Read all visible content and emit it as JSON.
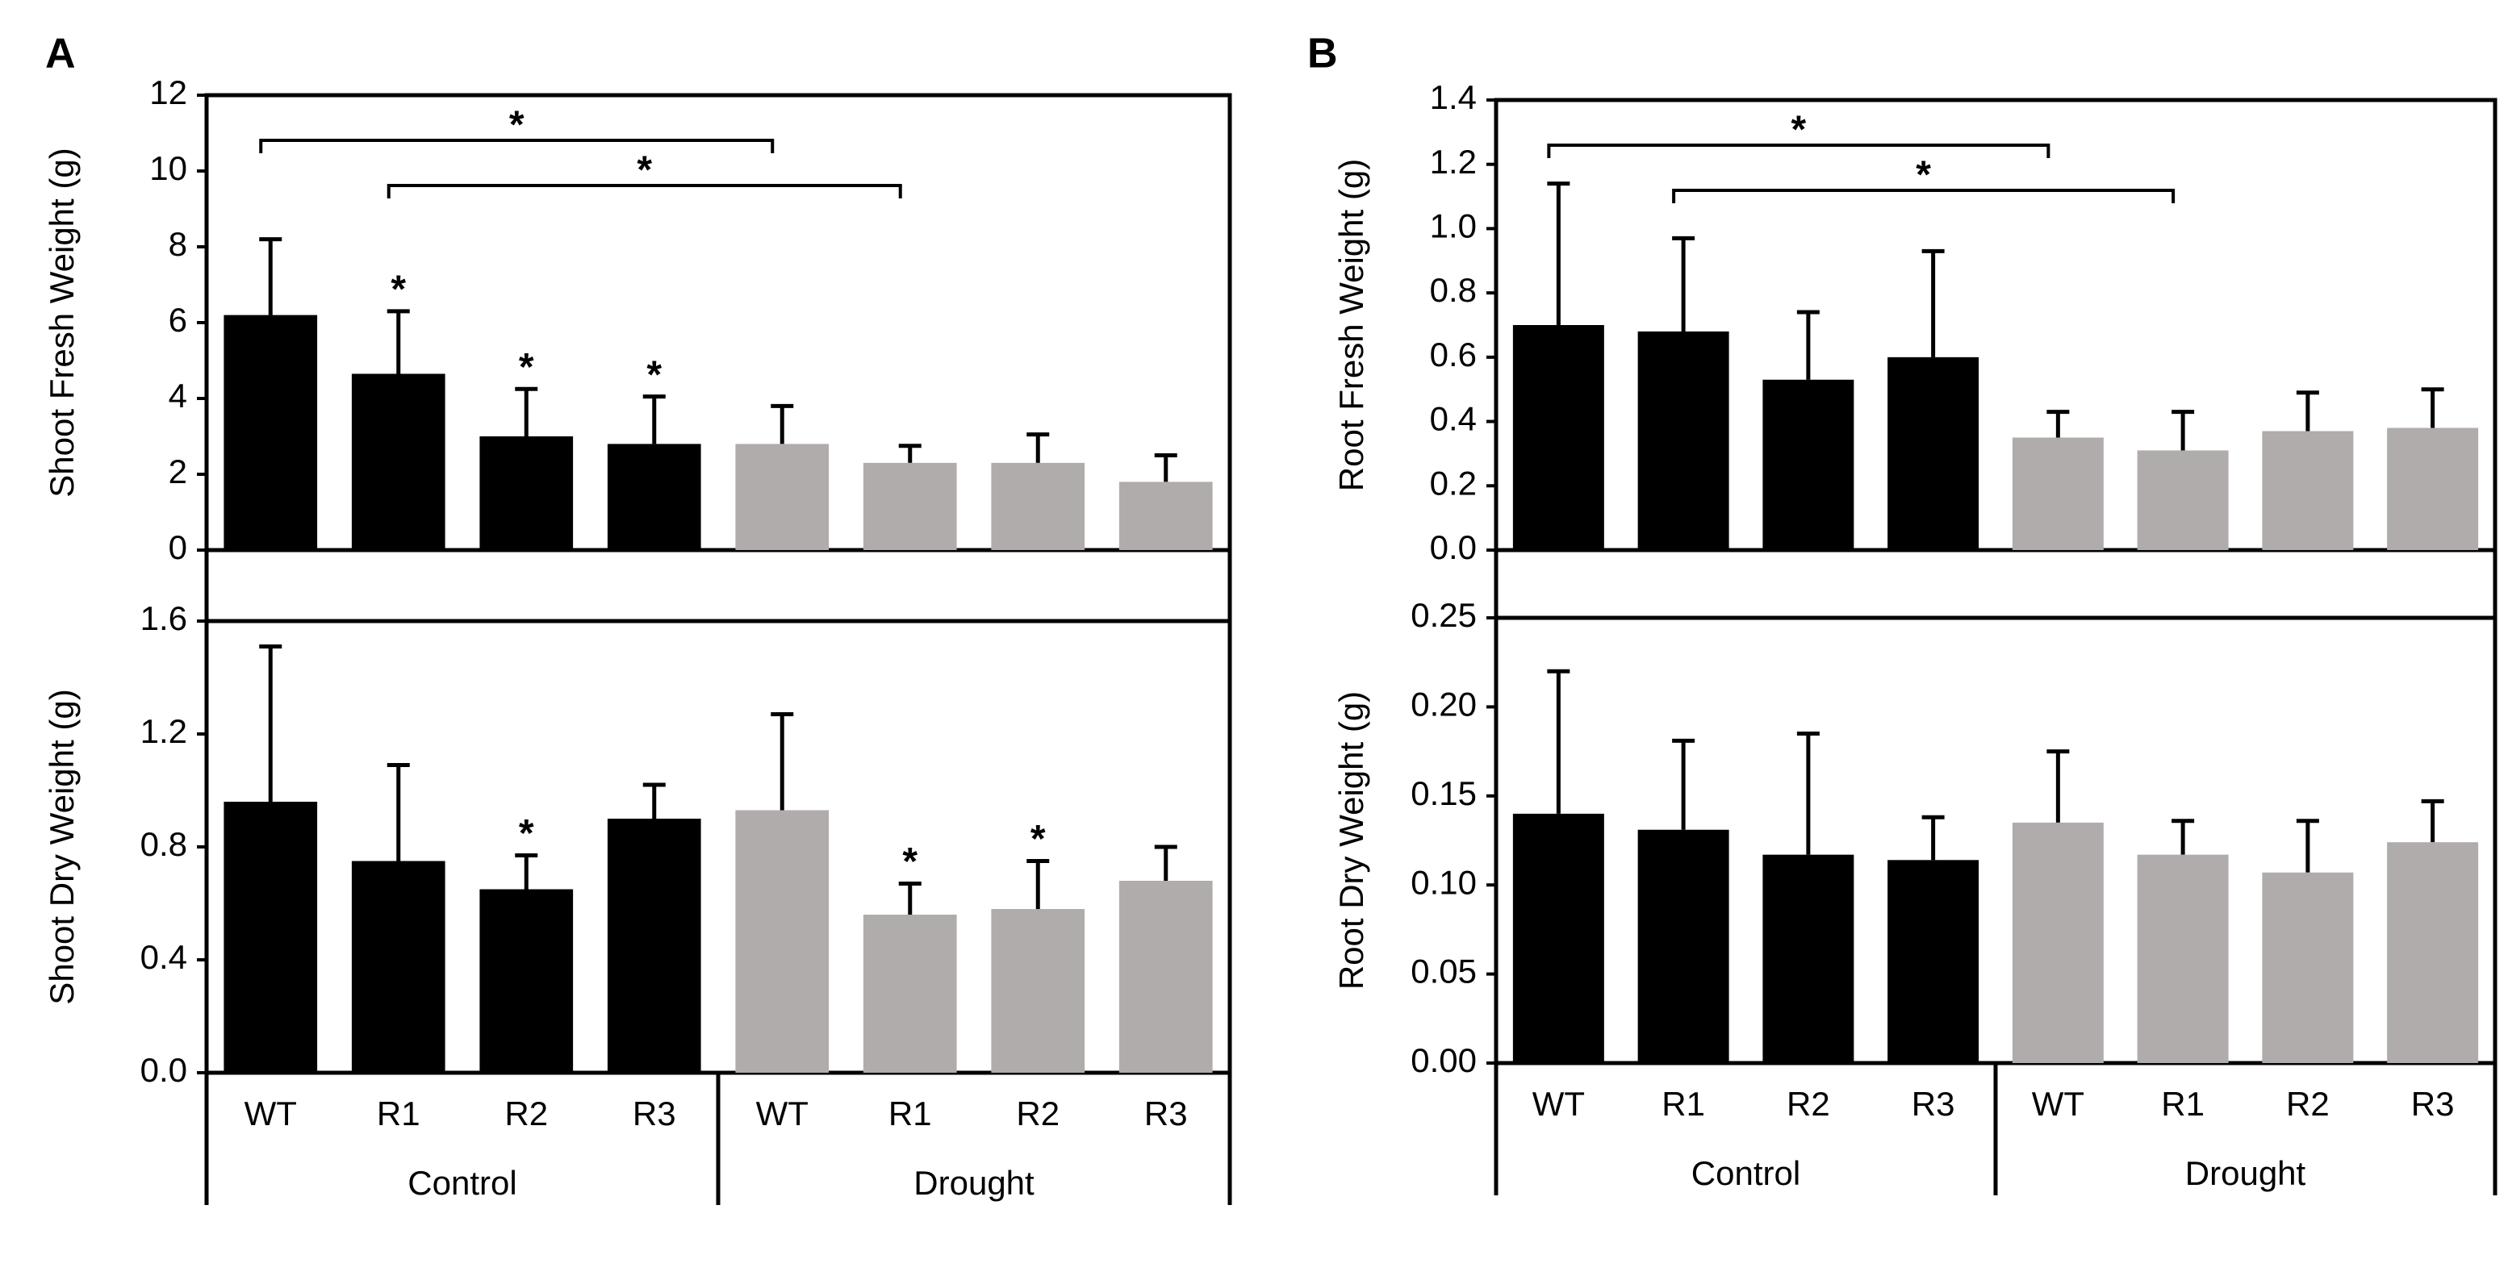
{
  "chart_data": [
    {
      "type": "bar",
      "panel_label": "A",
      "ylabel": "Shoot Fresh Weight (g)",
      "values": [
        6.2,
        4.65,
        3.0,
        2.8,
        2.8,
        2.3,
        2.3,
        1.8
      ],
      "errors": [
        2.0,
        1.65,
        1.25,
        1.25,
        1.0,
        0.45,
        0.75,
        0.7
      ],
      "colors": [
        "#000000",
        "#000000",
        "#000000",
        "#000000",
        "#b0acab",
        "#b0acab",
        "#b0acab",
        "#b0acab"
      ],
      "significance": [
        null,
        "*",
        "*",
        "*",
        null,
        null,
        null,
        null
      ],
      "comparisons": [
        {
          "from": 0,
          "to": 4,
          "label": "*"
        },
        {
          "from": 1,
          "to": 5,
          "label": "*"
        }
      ],
      "ylim": [
        0,
        12
      ],
      "yticks": [
        0,
        2,
        4,
        6,
        8,
        10,
        12
      ]
    },
    {
      "type": "bar",
      "ylabel": "Shoot Dry Weight (g)",
      "categories": [
        "WT",
        "R1",
        "R2",
        "R3",
        "WT",
        "R1",
        "R2",
        "R3"
      ],
      "groups": [
        "Control",
        "Drought"
      ],
      "values": [
        0.96,
        0.75,
        0.65,
        0.9,
        0.93,
        0.56,
        0.58,
        0.68
      ],
      "errors": [
        0.55,
        0.34,
        0.12,
        0.12,
        0.34,
        0.11,
        0.17,
        0.12
      ],
      "colors": [
        "#000000",
        "#000000",
        "#000000",
        "#000000",
        "#b0acab",
        "#b0acab",
        "#b0acab",
        "#b0acab"
      ],
      "significance": [
        null,
        null,
        "*",
        null,
        null,
        "*",
        "*",
        null
      ],
      "ylim": [
        0,
        1.6
      ],
      "yticks": [
        {
          "value": 0,
          "label": "0.0"
        },
        0.4,
        0.8,
        1.2,
        1.6
      ]
    },
    {
      "type": "bar",
      "panel_label": "B",
      "ylabel": "Root Fresh Weight (g)",
      "values": [
        0.7,
        0.68,
        0.53,
        0.6,
        0.35,
        0.31,
        0.37,
        0.38
      ],
      "errors": [
        0.44,
        0.29,
        0.21,
        0.33,
        0.08,
        0.12,
        0.12,
        0.12
      ],
      "colors": [
        "#000000",
        "#000000",
        "#000000",
        "#000000",
        "#b0acab",
        "#b0acab",
        "#b0acab",
        "#b0acab"
      ],
      "significance": [
        null,
        null,
        null,
        null,
        null,
        null,
        null,
        null
      ],
      "comparisons": [
        {
          "from": 0,
          "to": 4,
          "label": "*"
        },
        {
          "from": 1,
          "to": 5,
          "label": "*"
        }
      ],
      "ylim": [
        0,
        1.4
      ],
      "yticks": [
        {
          "value": 0,
          "label": "0.0"
        },
        0.2,
        0.4,
        0.6,
        0.8,
        {
          "value": 1,
          "label": "1.0"
        },
        1.2,
        1.4
      ]
    },
    {
      "type": "bar",
      "ylabel": "Root Dry Weight (g)",
      "categories": [
        "WT",
        "R1",
        "R2",
        "R3",
        "WT",
        "R1",
        "R2",
        "R3"
      ],
      "groups": [
        "Control",
        "Drought"
      ],
      "values": [
        0.14,
        0.131,
        0.117,
        0.114,
        0.135,
        0.117,
        0.107,
        0.124
      ],
      "errors": [
        0.08,
        0.05,
        0.068,
        0.024,
        0.04,
        0.019,
        0.029,
        0.023
      ],
      "colors": [
        "#000000",
        "#000000",
        "#000000",
        "#000000",
        "#b0acab",
        "#b0acab",
        "#b0acab",
        "#b0acab"
      ],
      "significance": [
        null,
        null,
        null,
        null,
        null,
        null,
        null,
        null
      ],
      "ylim": [
        0,
        0.25
      ],
      "yticks": [
        {
          "value": 0,
          "label": "0.00"
        },
        0.05,
        {
          "value": 0.1,
          "label": "0.10"
        },
        0.15,
        {
          "value": 0.2,
          "label": "0.20"
        },
        0.25
      ]
    }
  ]
}
